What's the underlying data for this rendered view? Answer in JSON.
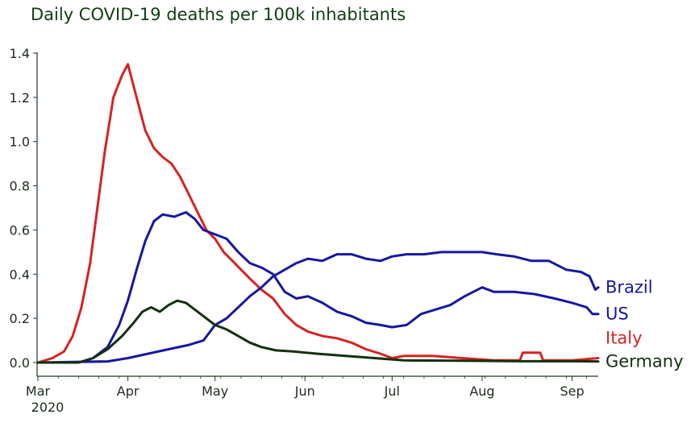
{
  "chart_data": {
    "type": "line",
    "title": "Daily COVID-19 deaths per 100k inhabitants",
    "xlabel": "",
    "ylabel": "",
    "x_range": [
      "2020-03-01",
      "2020-09-10"
    ],
    "ylim": [
      0,
      1.4
    ],
    "y_ticks": [
      0.0,
      0.2,
      0.4,
      0.6,
      0.8,
      1.0,
      1.2,
      1.4
    ],
    "y_tick_labels": [
      "0.0",
      "0.2",
      "0.4",
      "0.6",
      "0.8",
      "1.0",
      "1.2",
      "1.4"
    ],
    "x_ticks": [
      {
        "date": "2020-03-01",
        "label": "Mar",
        "sublabel": "2020"
      },
      {
        "date": "2020-04-01",
        "label": "Apr",
        "sublabel": ""
      },
      {
        "date": "2020-05-01",
        "label": "May",
        "sublabel": ""
      },
      {
        "date": "2020-06-01",
        "label": "Jun",
        "sublabel": ""
      },
      {
        "date": "2020-07-01",
        "label": "Jul",
        "sublabel": ""
      },
      {
        "date": "2020-08-01",
        "label": "Aug",
        "sublabel": ""
      },
      {
        "date": "2020-09-01",
        "label": "Sep",
        "sublabel": ""
      }
    ],
    "grid": false,
    "legend": "inline labels at right end of lines",
    "series": [
      {
        "name": "Italy",
        "color": "#d62222",
        "points": [
          [
            "2020-03-01",
            0.0
          ],
          [
            "2020-03-06",
            0.02
          ],
          [
            "2020-03-10",
            0.05
          ],
          [
            "2020-03-13",
            0.12
          ],
          [
            "2020-03-16",
            0.25
          ],
          [
            "2020-03-19",
            0.45
          ],
          [
            "2020-03-22",
            0.75
          ],
          [
            "2020-03-24",
            0.95
          ],
          [
            "2020-03-27",
            1.2
          ],
          [
            "2020-03-30",
            1.3
          ],
          [
            "2020-04-01",
            1.35
          ],
          [
            "2020-04-04",
            1.2
          ],
          [
            "2020-04-07",
            1.05
          ],
          [
            "2020-04-10",
            0.97
          ],
          [
            "2020-04-13",
            0.93
          ],
          [
            "2020-04-16",
            0.9
          ],
          [
            "2020-04-19",
            0.84
          ],
          [
            "2020-04-22",
            0.76
          ],
          [
            "2020-04-25",
            0.68
          ],
          [
            "2020-04-28",
            0.6
          ],
          [
            "2020-05-01",
            0.56
          ],
          [
            "2020-05-04",
            0.5
          ],
          [
            "2020-05-07",
            0.46
          ],
          [
            "2020-05-10",
            0.42
          ],
          [
            "2020-05-13",
            0.38
          ],
          [
            "2020-05-17",
            0.33
          ],
          [
            "2020-05-21",
            0.29
          ],
          [
            "2020-05-25",
            0.22
          ],
          [
            "2020-05-29",
            0.17
          ],
          [
            "2020-06-02",
            0.14
          ],
          [
            "2020-06-07",
            0.12
          ],
          [
            "2020-06-12",
            0.11
          ],
          [
            "2020-06-17",
            0.09
          ],
          [
            "2020-06-22",
            0.06
          ],
          [
            "2020-06-27",
            0.04
          ],
          [
            "2020-07-01",
            0.02
          ],
          [
            "2020-07-05",
            0.03
          ],
          [
            "2020-07-15",
            0.03
          ],
          [
            "2020-07-25",
            0.02
          ],
          [
            "2020-08-05",
            0.01
          ],
          [
            "2020-08-14",
            0.01
          ],
          [
            "2020-08-15",
            0.045
          ],
          [
            "2020-08-21",
            0.045
          ],
          [
            "2020-08-22",
            0.01
          ],
          [
            "2020-09-01",
            0.01
          ],
          [
            "2020-09-10",
            0.02
          ]
        ]
      },
      {
        "name": "US",
        "color": "#1717a0",
        "points": [
          [
            "2020-03-01",
            0.0
          ],
          [
            "2020-03-15",
            0.0
          ],
          [
            "2020-03-20",
            0.02
          ],
          [
            "2020-03-25",
            0.07
          ],
          [
            "2020-03-29",
            0.17
          ],
          [
            "2020-04-01",
            0.28
          ],
          [
            "2020-04-04",
            0.42
          ],
          [
            "2020-04-07",
            0.55
          ],
          [
            "2020-04-10",
            0.64
          ],
          [
            "2020-04-13",
            0.67
          ],
          [
            "2020-04-17",
            0.66
          ],
          [
            "2020-04-21",
            0.68
          ],
          [
            "2020-04-24",
            0.65
          ],
          [
            "2020-04-27",
            0.6
          ],
          [
            "2020-05-01",
            0.58
          ],
          [
            "2020-05-05",
            0.56
          ],
          [
            "2020-05-09",
            0.5
          ],
          [
            "2020-05-13",
            0.45
          ],
          [
            "2020-05-17",
            0.43
          ],
          [
            "2020-05-21",
            0.4
          ],
          [
            "2020-05-25",
            0.32
          ],
          [
            "2020-05-29",
            0.29
          ],
          [
            "2020-06-02",
            0.3
          ],
          [
            "2020-06-07",
            0.27
          ],
          [
            "2020-06-12",
            0.23
          ],
          [
            "2020-06-17",
            0.21
          ],
          [
            "2020-06-22",
            0.18
          ],
          [
            "2020-06-27",
            0.17
          ],
          [
            "2020-07-01",
            0.16
          ],
          [
            "2020-07-06",
            0.17
          ],
          [
            "2020-07-11",
            0.22
          ],
          [
            "2020-07-16",
            0.24
          ],
          [
            "2020-07-21",
            0.26
          ],
          [
            "2020-07-26",
            0.3
          ],
          [
            "2020-08-01",
            0.34
          ],
          [
            "2020-08-05",
            0.32
          ],
          [
            "2020-08-12",
            0.32
          ],
          [
            "2020-08-19",
            0.31
          ],
          [
            "2020-08-26",
            0.29
          ],
          [
            "2020-09-01",
            0.27
          ],
          [
            "2020-09-06",
            0.25
          ],
          [
            "2020-09-08",
            0.22
          ],
          [
            "2020-09-10",
            0.22
          ]
        ]
      },
      {
        "name": "Brazil",
        "color": "#1717a0",
        "points": [
          [
            "2020-03-01",
            0.0
          ],
          [
            "2020-03-25",
            0.005
          ],
          [
            "2020-04-01",
            0.02
          ],
          [
            "2020-04-08",
            0.04
          ],
          [
            "2020-04-15",
            0.06
          ],
          [
            "2020-04-22",
            0.08
          ],
          [
            "2020-04-27",
            0.1
          ],
          [
            "2020-05-01",
            0.17
          ],
          [
            "2020-05-05",
            0.2
          ],
          [
            "2020-05-09",
            0.25
          ],
          [
            "2020-05-13",
            0.3
          ],
          [
            "2020-05-17",
            0.34
          ],
          [
            "2020-05-21",
            0.39
          ],
          [
            "2020-05-25",
            0.42
          ],
          [
            "2020-05-29",
            0.45
          ],
          [
            "2020-06-02",
            0.47
          ],
          [
            "2020-06-07",
            0.46
          ],
          [
            "2020-06-12",
            0.49
          ],
          [
            "2020-06-17",
            0.49
          ],
          [
            "2020-06-22",
            0.47
          ],
          [
            "2020-06-27",
            0.46
          ],
          [
            "2020-07-01",
            0.48
          ],
          [
            "2020-07-06",
            0.49
          ],
          [
            "2020-07-12",
            0.49
          ],
          [
            "2020-07-18",
            0.5
          ],
          [
            "2020-07-25",
            0.5
          ],
          [
            "2020-08-01",
            0.5
          ],
          [
            "2020-08-06",
            0.49
          ],
          [
            "2020-08-12",
            0.48
          ],
          [
            "2020-08-18",
            0.46
          ],
          [
            "2020-08-24",
            0.46
          ],
          [
            "2020-08-30",
            0.42
          ],
          [
            "2020-09-04",
            0.41
          ],
          [
            "2020-09-07",
            0.39
          ],
          [
            "2020-09-09",
            0.33
          ],
          [
            "2020-09-10",
            0.34
          ]
        ]
      },
      {
        "name": "Germany",
        "color": "#13300f",
        "points": [
          [
            "2020-03-01",
            0.0
          ],
          [
            "2020-03-15",
            0.0
          ],
          [
            "2020-03-20",
            0.02
          ],
          [
            "2020-03-25",
            0.06
          ],
          [
            "2020-03-30",
            0.12
          ],
          [
            "2020-04-03",
            0.18
          ],
          [
            "2020-04-06",
            0.23
          ],
          [
            "2020-04-09",
            0.25
          ],
          [
            "2020-04-12",
            0.23
          ],
          [
            "2020-04-15",
            0.26
          ],
          [
            "2020-04-18",
            0.28
          ],
          [
            "2020-04-21",
            0.27
          ],
          [
            "2020-04-24",
            0.24
          ],
          [
            "2020-04-27",
            0.21
          ],
          [
            "2020-05-01",
            0.17
          ],
          [
            "2020-05-05",
            0.15
          ],
          [
            "2020-05-09",
            0.12
          ],
          [
            "2020-05-13",
            0.09
          ],
          [
            "2020-05-17",
            0.07
          ],
          [
            "2020-05-22",
            0.055
          ],
          [
            "2020-05-28",
            0.05
          ],
          [
            "2020-06-05",
            0.04
          ],
          [
            "2020-06-15",
            0.03
          ],
          [
            "2020-06-25",
            0.02
          ],
          [
            "2020-07-05",
            0.01
          ],
          [
            "2020-07-25",
            0.008
          ],
          [
            "2020-08-15",
            0.006
          ],
          [
            "2020-09-01",
            0.006
          ],
          [
            "2020-09-10",
            0.005
          ]
        ]
      }
    ]
  }
}
